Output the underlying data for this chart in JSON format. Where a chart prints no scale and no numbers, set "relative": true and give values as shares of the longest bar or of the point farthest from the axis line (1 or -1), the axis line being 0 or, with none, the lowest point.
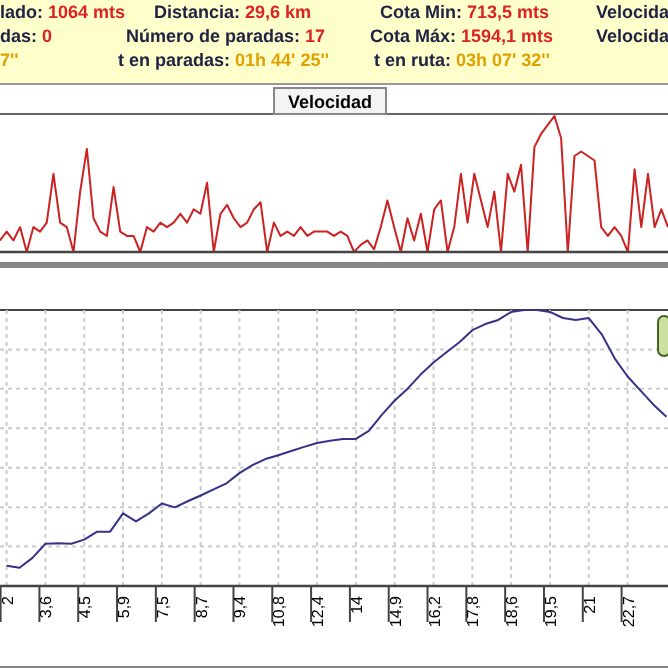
{
  "chart_data": [
    {
      "type": "other",
      "annotations": [
        "lado: 1064 mts",
        "Distancia: 29,6 km",
        "Cota Min: 713,5 mts",
        "Velocida",
        "das: 0",
        "Número de paradas: 17",
        "Cota Máx: 1594,1 mts",
        "Velocida",
        "7''",
        "t en paradas: 01h 44' 25''",
        "t en ruta: 03h 07' 32''"
      ]
    },
    {
      "type": "line",
      "title": "Velocidad",
      "relative": true,
      "categories": [
        null,
        null,
        null,
        null,
        null,
        null,
        null,
        null,
        null,
        null,
        null,
        null,
        null,
        null,
        null,
        null,
        null,
        null,
        null,
        null,
        null,
        null,
        null,
        null,
        null,
        null,
        null,
        null,
        null,
        null,
        null,
        null,
        null,
        null,
        null,
        null,
        null,
        null,
        null,
        null,
        null,
        null,
        null,
        null,
        null,
        null,
        null,
        null,
        null,
        null,
        null,
        null,
        null,
        null,
        null,
        null,
        null,
        null,
        null,
        null,
        null,
        null,
        null,
        null,
        null,
        null,
        null,
        null,
        null,
        null,
        null,
        null,
        null,
        null,
        null,
        null,
        null,
        null,
        null,
        null,
        null,
        null,
        null,
        null,
        null,
        null,
        null,
        null,
        null,
        null,
        null,
        null,
        null,
        null,
        null,
        null,
        null,
        null,
        null,
        null,
        null
      ],
      "series": [
        {
          "color": "#cc2222",
          "values": [
            0.085,
            0.15,
            0.085,
            0.183,
            0,
            0.183,
            0.15,
            0.216,
            0.575,
            0.216,
            0.183,
            0,
            0.444,
            0.758,
            0.248,
            0.15,
            0.118,
            0.477,
            0.15,
            0.118,
            0.118,
            0,
            0.183,
            0.15,
            0.216,
            0.183,
            0.216,
            0.281,
            0.216,
            0.314,
            0.281,
            0.51,
            0,
            0.281,
            0.346,
            0.248,
            0.183,
            0.216,
            0.314,
            0.366,
            0,
            0.216,
            0.118,
            0.15,
            0.118,
            0.183,
            0.118,
            0.15,
            0.15,
            0.15,
            0.118,
            0.15,
            0.118,
            0,
            0.052,
            0.085,
            0.02,
            0.183,
            0.379,
            0.183,
            0,
            0.248,
            0.085,
            0.281,
            0,
            0.314,
            0.379,
            0,
            0.183,
            0.575,
            0.216,
            0.575,
            0.379,
            0.183,
            0.444,
            0,
            0.575,
            0.444,
            0.641,
            0,
            0.771,
            0.869,
            0.935,
            1,
            0.837,
            0,
            0.706,
            0.739,
            0.706,
            0.673,
            0.183,
            0.118,
            0.183,
            0.118,
            0,
            0.608,
            0.183,
            0.575,
            0.183,
            0.314,
            0.183
          ]
        }
      ]
    },
    {
      "type": "line",
      "relative": true,
      "grid": true,
      "categories": [
        "2",
        null,
        null,
        "3,6",
        null,
        null,
        "4,5",
        null,
        null,
        "5,9",
        null,
        null,
        "7,5",
        null,
        null,
        "8,7",
        null,
        null,
        "9,4",
        null,
        null,
        "10,8",
        null,
        null,
        "12,4",
        null,
        null,
        "14",
        null,
        null,
        "14,9",
        null,
        null,
        "16,2",
        null,
        null,
        "17,8",
        null,
        null,
        "18,6",
        null,
        null,
        "19,5",
        null,
        null,
        "21",
        null,
        null,
        "22,7",
        null,
        null,
        null
      ],
      "series": [
        {
          "color": "#333388",
          "values": [
            0.073,
            0.066,
            0.102,
            0.153,
            0.155,
            0.153,
            0.168,
            0.197,
            0.197,
            0.263,
            0.234,
            0.263,
            0.299,
            0.285,
            0.307,
            0.328,
            0.35,
            0.372,
            0.409,
            0.438,
            0.46,
            0.474,
            0.489,
            0.504,
            0.518,
            0.526,
            0.533,
            0.533,
            0.562,
            0.62,
            0.672,
            0.715,
            0.766,
            0.81,
            0.847,
            0.883,
            0.927,
            0.949,
            0.964,
            0.993,
            1,
            1,
            0.993,
            0.971,
            0.964,
            0.971,
            0.912,
            0.825,
            0.759,
            0.708,
            0.657,
            0.613
          ]
        }
      ]
    }
  ]
}
